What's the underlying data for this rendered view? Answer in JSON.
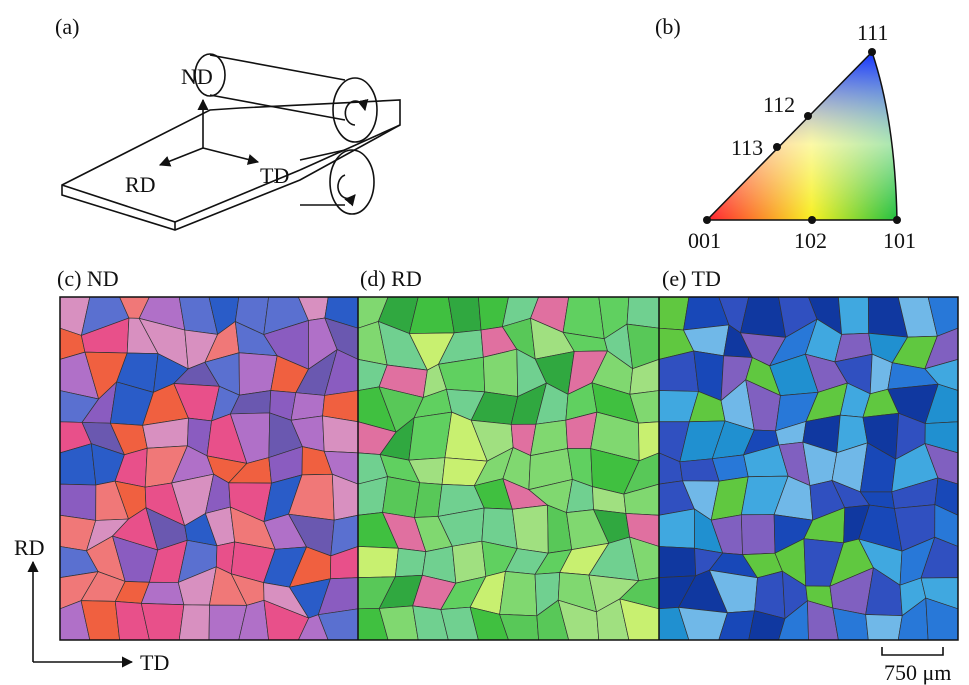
{
  "panel_a": {
    "label": "(a)",
    "normal": "ND",
    "rolling": "RD",
    "transverse": "TD"
  },
  "panel_b": {
    "label": "(b)",
    "poles": {
      "p111": "111",
      "p112": "112",
      "p113": "113",
      "p001": "001",
      "p102": "102",
      "p101": "101"
    }
  },
  "maps": [
    {
      "label": "(c) ND"
    },
    {
      "label": "(d) RD"
    },
    {
      "label": "(e) TD"
    }
  ],
  "frame_axes": {
    "vertical": "RD",
    "horizontal": "TD"
  },
  "scale_bar": "750 μm"
}
